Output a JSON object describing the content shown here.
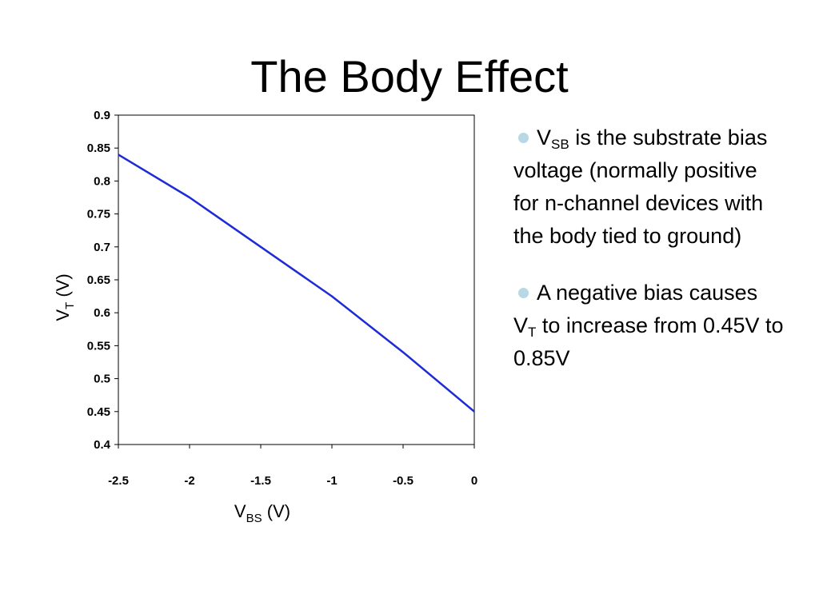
{
  "slide": {
    "title": "The Body Effect"
  },
  "bullets": [
    {
      "parts": [
        {
          "text": "V"
        },
        {
          "text": "SB",
          "sub": true
        },
        {
          "text": " is the substrate bias voltage (normally positive for n-channel devices with the body tied to ground)"
        }
      ]
    },
    {
      "parts": [
        {
          "text": "A negative bias causes V"
        },
        {
          "text": "T",
          "sub": true
        },
        {
          "text": " to increase from 0.45V to 0.85V"
        }
      ]
    }
  ],
  "colors": {
    "series_line": "#1f2bd6",
    "bullet_dot": "#b7d8e4",
    "axis": "#000000"
  },
  "chart_data": {
    "type": "line",
    "title": "",
    "xlabel": {
      "main": "V",
      "sub": "BS",
      "suffix": " (V)"
    },
    "ylabel": {
      "main": "V",
      "sub": "T",
      "suffix": " (V)"
    },
    "xlim": [
      -2.5,
      0
    ],
    "ylim": [
      0.4,
      0.9
    ],
    "x_ticks": [
      "-2.5",
      "-2",
      "-1.5",
      "-1",
      "-0.5",
      "0"
    ],
    "y_ticks": [
      "0.9",
      "0.85",
      "0.8",
      "0.75",
      "0.7",
      "0.65",
      "0.6",
      "0.55",
      "0.5",
      "0.45",
      "0.4"
    ],
    "grid": false,
    "legend": "none",
    "series": [
      {
        "x": [
          -2.5,
          -2.0,
          -1.5,
          -1.0,
          -0.5,
          0.0
        ],
        "y": [
          0.84,
          0.775,
          0.7,
          0.625,
          0.54,
          0.45
        ]
      }
    ]
  }
}
